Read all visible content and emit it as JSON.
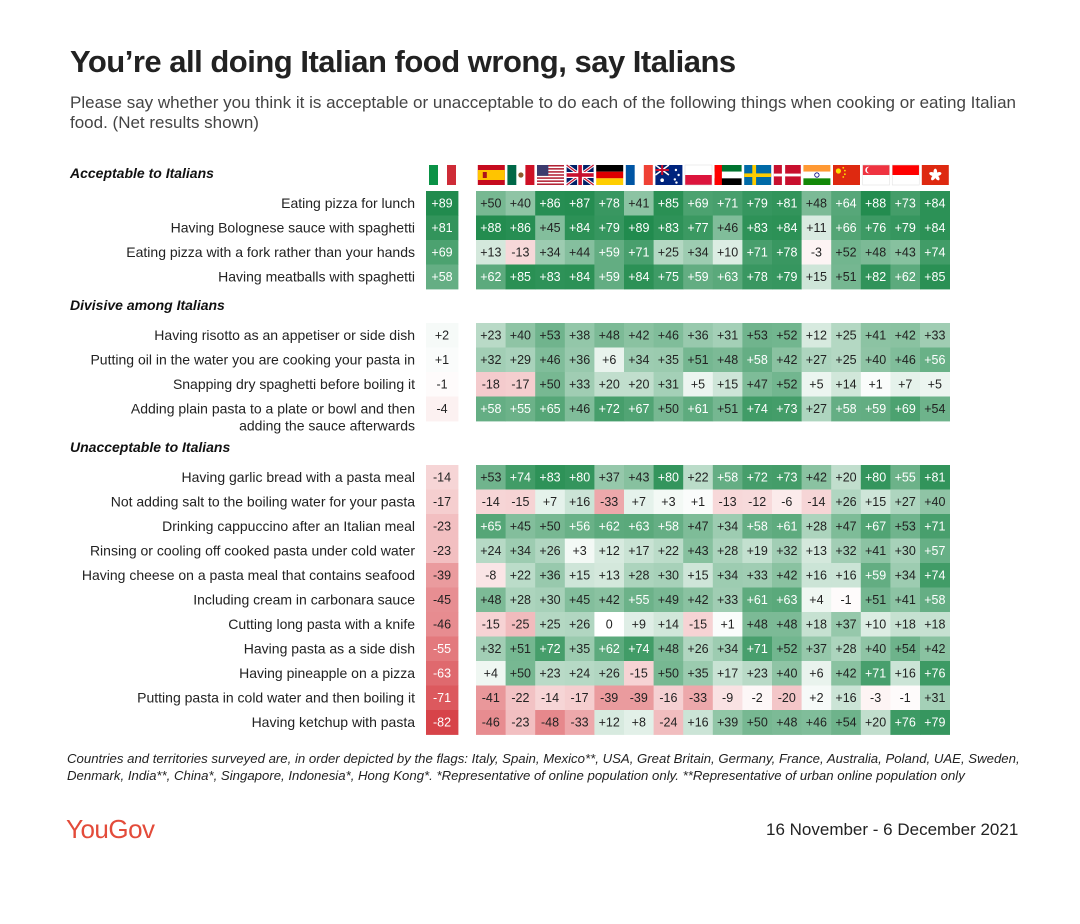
{
  "title": "You’re all doing Italian food wrong, say Italians",
  "subtitle": "Please say whether you think it is acceptable or unacceptable to do each of the following things when cooking or eating Italian food. (Net results shown)",
  "footnote": "Countries and territories surveyed are, in order depicted by the flags: Italy, Spain, Mexico**, USA, Great Britain, Germany, France, Australia, Poland, UAE, Sweden, Denmark, India**, China*, Singapore, Indonesia*, Hong Kong*. *Representative of online population only. **Representative of urban online population only",
  "logo": "YouGov",
  "dates": "16 November - 6 December 2021",
  "colors": {
    "positive": "#1f8a4c",
    "negative": "#d4343a",
    "neutral": "#ffffff"
  },
  "chart_data": {
    "type": "heatmap",
    "columns": [
      {
        "flag": "italy-flag"
      },
      {
        "flag": "spain-flag"
      },
      {
        "flag": "mexico-flag"
      },
      {
        "flag": "usa-flag"
      },
      {
        "flag": "great-britain-flag"
      },
      {
        "flag": "germany-flag"
      },
      {
        "flag": "france-flag"
      },
      {
        "flag": "australia-flag"
      },
      {
        "flag": "poland-flag"
      },
      {
        "flag": "uae-flag"
      },
      {
        "flag": "sweden-flag"
      },
      {
        "flag": "denmark-flag"
      },
      {
        "flag": "india-flag"
      },
      {
        "flag": "china-flag"
      },
      {
        "flag": "singapore-flag"
      },
      {
        "flag": "indonesia-flag"
      },
      {
        "flag": "hong-kong-flag"
      }
    ],
    "groups": [
      {
        "heading": "Acceptable to Italians",
        "rows": [
          {
            "label": "Eating pizza for lunch",
            "values": [
              89,
              50,
              40,
              86,
              87,
              78,
              41,
              85,
              69,
              71,
              79,
              81,
              48,
              64,
              88,
              73,
              84
            ]
          },
          {
            "label": "Having Bolognese sauce with spaghetti",
            "values": [
              81,
              88,
              86,
              45,
              84,
              79,
              89,
              83,
              77,
              46,
              83,
              84,
              11,
              66,
              76,
              79,
              84
            ]
          },
          {
            "label": "Eating pizza with a fork rather than your hands",
            "values": [
              69,
              13,
              -13,
              34,
              44,
              59,
              71,
              25,
              34,
              10,
              71,
              78,
              -3,
              52,
              48,
              43,
              74
            ]
          },
          {
            "label": "Having meatballs with spaghetti",
            "values": [
              58,
              62,
              85,
              83,
              84,
              59,
              84,
              75,
              59,
              63,
              78,
              79,
              15,
              51,
              82,
              62,
              85
            ]
          }
        ]
      },
      {
        "heading": "Divisive among Italians",
        "rows": [
          {
            "label": "Having risotto as an appetiser or side dish",
            "values": [
              2,
              23,
              40,
              53,
              38,
              48,
              42,
              46,
              36,
              31,
              53,
              52,
              12,
              25,
              41,
              42,
              33
            ]
          },
          {
            "label": "Putting oil in the water you are cooking your pasta in",
            "values": [
              1,
              32,
              29,
              46,
              36,
              6,
              34,
              35,
              51,
              48,
              58,
              42,
              27,
              25,
              40,
              46,
              56
            ]
          },
          {
            "label": "Snapping dry spaghetti before boiling it",
            "values": [
              -1,
              -18,
              -17,
              50,
              33,
              20,
              20,
              31,
              5,
              15,
              47,
              52,
              5,
              14,
              1,
              7,
              5
            ]
          },
          {
            "label": "Adding plain pasta to a plate or bowl and then",
            "label2": "adding the sauce afterwards",
            "values": [
              -4,
              58,
              55,
              65,
              46,
              72,
              67,
              50,
              61,
              51,
              74,
              73,
              27,
              58,
              59,
              69,
              54
            ]
          }
        ]
      },
      {
        "heading": "Unacceptable to Italians",
        "rows": [
          {
            "label": "Having garlic bread with a pasta meal",
            "values": [
              -14,
              53,
              74,
              83,
              80,
              37,
              43,
              80,
              22,
              58,
              72,
              73,
              42,
              20,
              80,
              55,
              81
            ]
          },
          {
            "label": "Not adding salt to the boiling water for your pasta",
            "values": [
              -17,
              -14,
              -15,
              7,
              16,
              -33,
              7,
              3,
              1,
              -13,
              -12,
              -6,
              -14,
              26,
              15,
              27,
              40
            ]
          },
          {
            "label": "Drinking cappuccino after an Italian meal",
            "values": [
              -23,
              65,
              45,
              50,
              56,
              62,
              63,
              58,
              47,
              34,
              58,
              61,
              28,
              47,
              67,
              53,
              71
            ]
          },
          {
            "label": "Rinsing or cooling off cooked pasta under cold water",
            "values": [
              -23,
              24,
              34,
              26,
              3,
              12,
              17,
              22,
              43,
              28,
              19,
              32,
              13,
              32,
              41,
              30,
              57
            ]
          },
          {
            "label": "Having cheese on a pasta meal that contains seafood",
            "values": [
              -39,
              -8,
              22,
              36,
              15,
              13,
              28,
              30,
              15,
              34,
              33,
              42,
              16,
              16,
              59,
              34,
              74
            ]
          },
          {
            "label": "Including cream in carbonara sauce",
            "values": [
              -45,
              48,
              28,
              30,
              45,
              42,
              55,
              49,
              42,
              33,
              61,
              63,
              4,
              -1,
              51,
              41,
              58
            ]
          },
          {
            "label": "Cutting long pasta with a knife",
            "values": [
              -46,
              -15,
              -25,
              25,
              26,
              0,
              9,
              14,
              -15,
              1,
              48,
              48,
              18,
              37,
              10,
              18,
              18
            ]
          },
          {
            "label": "Having pasta as a side dish",
            "values": [
              -55,
              32,
              51,
              72,
              35,
              62,
              74,
              48,
              26,
              34,
              71,
              52,
              37,
              28,
              40,
              54,
              42
            ]
          },
          {
            "label": "Having pineapple on a pizza",
            "values": [
              -63,
              4,
              50,
              23,
              24,
              26,
              -15,
              50,
              35,
              17,
              23,
              40,
              6,
              42,
              71,
              16,
              76
            ]
          },
          {
            "label": "Putting pasta in cold water and then boiling it",
            "values": [
              -71,
              -41,
              -22,
              -14,
              -17,
              -39,
              -39,
              -16,
              -33,
              -9,
              -2,
              -20,
              2,
              16,
              -3,
              -1,
              31
            ]
          },
          {
            "label": "Having ketchup with pasta",
            "values": [
              -82,
              -46,
              -23,
              -48,
              -33,
              12,
              8,
              -24,
              16,
              39,
              50,
              48,
              46,
              54,
              20,
              76,
              79
            ]
          }
        ]
      }
    ]
  }
}
